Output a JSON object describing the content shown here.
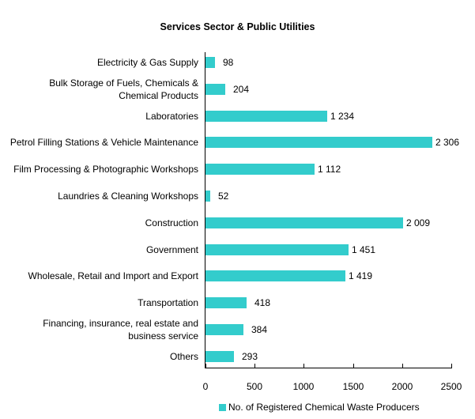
{
  "chart_data": {
    "type": "bar",
    "orientation": "horizontal",
    "title": "Services Sector & Public Utilities",
    "xlabel": "",
    "ylabel": "",
    "xlim": [
      0,
      2500
    ],
    "x_ticks": [
      "0",
      "500",
      "1000",
      "1500",
      "2000",
      "2500"
    ],
    "grid": false,
    "legend_position": "bottom",
    "categories": [
      "Electricity & Gas Supply",
      "Bulk Storage of Fuels, Chemicals & Chemical Products",
      "Laboratories",
      "Petrol Filling Stations & Vehicle Maintenance",
      "Film Processing & Photographic Workshops",
      "Laundries & Cleaning Workshops",
      "Construction",
      "Government",
      "Wholesale, Retail and Import and Export",
      "Transportation",
      "Financing, insurance, real estate and business service",
      "Others"
    ],
    "series": [
      {
        "name": "No. of Registered Chemical Waste Producers",
        "color": "#33cccc",
        "values": [
          98,
          204,
          1234,
          2306,
          1112,
          52,
          2009,
          1451,
          1419,
          418,
          384,
          293
        ],
        "labels": [
          "98",
          "204",
          "1 234",
          "2 306",
          "1 112",
          "52",
          "2 009",
          "1 451",
          "1 419",
          "418",
          "384",
          "293"
        ]
      }
    ]
  },
  "display": {
    "title": "Services Sector & Public Utilities",
    "legend": "No. of Registered Chemical Waste Producers",
    "rows": [
      {
        "line1": "Electricity & Gas Supply",
        "line2": "",
        "value": 98,
        "label": "98"
      },
      {
        "line1": "Bulk Storage of Fuels, Chemicals &",
        "line2": "Chemical Products",
        "value": 204,
        "label": "204"
      },
      {
        "line1": "Laboratories",
        "line2": "",
        "value": 1234,
        "label": "1 234"
      },
      {
        "line1": "Petrol Filling Stations & Vehicle Maintenance",
        "line2": "",
        "value": 2306,
        "label": "2 306"
      },
      {
        "line1": "Film Processing & Photographic Workshops",
        "line2": "",
        "value": 1112,
        "label": "1 112"
      },
      {
        "line1": "Laundries & Cleaning Workshops",
        "line2": "",
        "value": 52,
        "label": "52"
      },
      {
        "line1": "Construction",
        "line2": "",
        "value": 2009,
        "label": "2 009"
      },
      {
        "line1": "Government",
        "line2": "",
        "value": 1451,
        "label": "1 451"
      },
      {
        "line1": "Wholesale, Retail and Import and Export",
        "line2": "",
        "value": 1419,
        "label": "1 419"
      },
      {
        "line1": "Transportation",
        "line2": "",
        "value": 418,
        "label": "418"
      },
      {
        "line1": "Financing, insurance, real estate and",
        "line2": "business service",
        "value": 384,
        "label": "384"
      },
      {
        "line1": "Others",
        "line2": "",
        "value": 293,
        "label": "293"
      }
    ],
    "ticks": [
      "0",
      "500",
      "1000",
      "1500",
      "2000",
      "2500"
    ]
  }
}
